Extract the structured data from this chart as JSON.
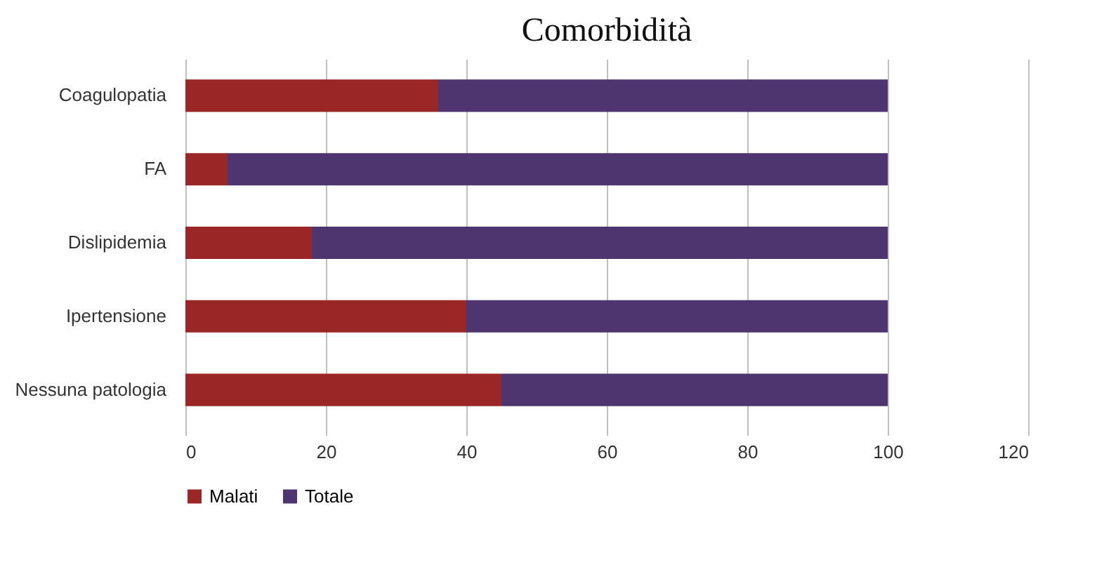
{
  "chart_data": {
    "type": "bar",
    "orientation": "horizontal",
    "stacked": true,
    "title": "Comorbidità",
    "categories": [
      "Coagulopatia",
      "FA",
      "Dislipidemia",
      "Ipertensione",
      "Nessuna patologia"
    ],
    "series": [
      {
        "name": "Malati",
        "color": "#9b2626",
        "values": [
          36,
          6,
          18,
          40,
          45
        ]
      },
      {
        "name": "Totale",
        "color": "#4e3570",
        "values": [
          64,
          94,
          82,
          60,
          55
        ]
      }
    ],
    "xlim": [
      0,
      120
    ],
    "xticks": [
      0,
      20,
      40,
      60,
      80,
      100,
      120
    ],
    "grid": "x",
    "legend": "bottom"
  }
}
